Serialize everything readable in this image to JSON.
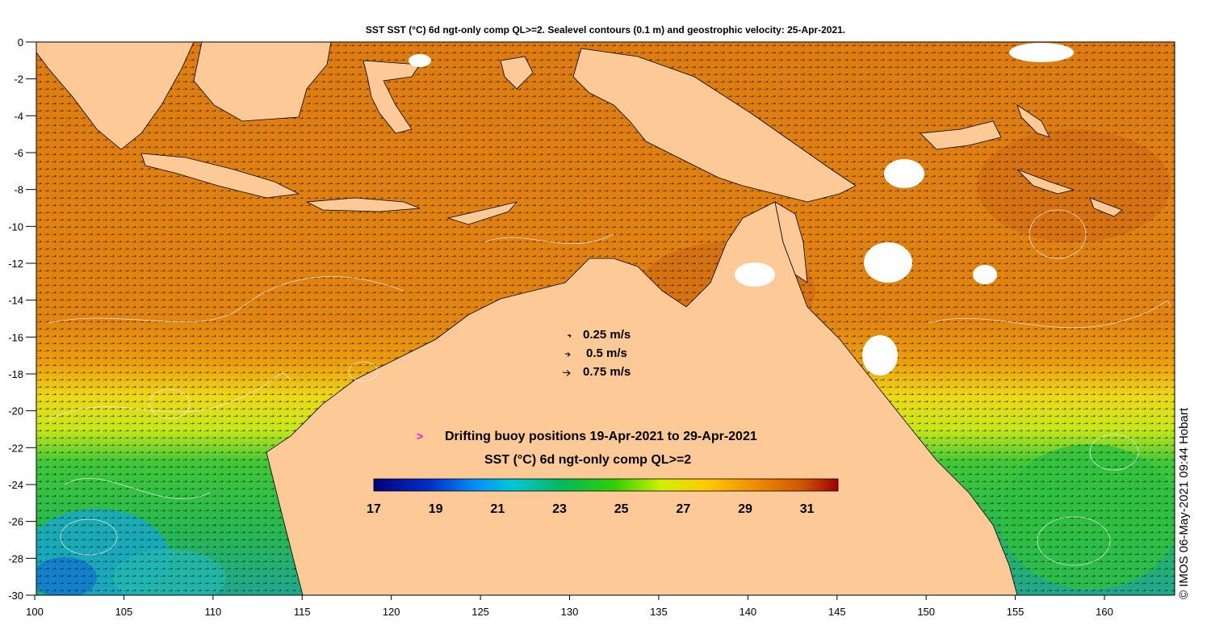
{
  "title": "SST SST (°C) 6d ngt-only comp QL>=2. Sealevel contours (0.1 m) and geostrophic velocity: 25-Apr-2021.",
  "axes": {
    "x_ticks": [
      "100",
      "105",
      "110",
      "115",
      "120",
      "125",
      "130",
      "135",
      "140",
      "145",
      "150",
      "155",
      "160"
    ],
    "y_ticks": [
      "0",
      "-2",
      "-4",
      "-6",
      "-8",
      "-10",
      "-12",
      "-14",
      "-16",
      "-18",
      "-20",
      "-22",
      "-24",
      "-26",
      "-28",
      "-30"
    ],
    "lon_range": [
      100,
      164
    ],
    "lat_range": [
      -30,
      0
    ]
  },
  "velocity_scale": {
    "items": [
      {
        "label": "0.25 m/s",
        "magnitude": 0.25
      },
      {
        "label": "0.5 m/s",
        "magnitude": 0.5
      },
      {
        "label": "0.75 m/s",
        "magnitude": 0.75
      }
    ]
  },
  "buoy_legend": {
    "symbol": ">",
    "label": "Drifting buoy positions 19-Apr-2021 to 29-Apr-2021",
    "color": "#e020e0"
  },
  "colorbar": {
    "title": "SST (°C) 6d ngt-only comp QL>=2",
    "ticks": [
      "17",
      "19",
      "21",
      "23",
      "25",
      "27",
      "29",
      "31"
    ],
    "range": [
      17,
      32
    ],
    "colors": [
      "#00007f",
      "#0040d8",
      "#00a8ff",
      "#00d8c0",
      "#00c040",
      "#40d000",
      "#e0f000",
      "#ffc000",
      "#f08000",
      "#d05000",
      "#a00000"
    ]
  },
  "credit": "© IMOS 06-May-2021 09:44 Hobart",
  "colors": {
    "land": "#fcc997",
    "warm_sea": "#e0800a",
    "hot_sea": "#d06010",
    "mid_sea": "#f0b000",
    "yellow_sea": "#e8f010",
    "green_sea": "#30c840",
    "cool_sea": "#10b0d0"
  }
}
